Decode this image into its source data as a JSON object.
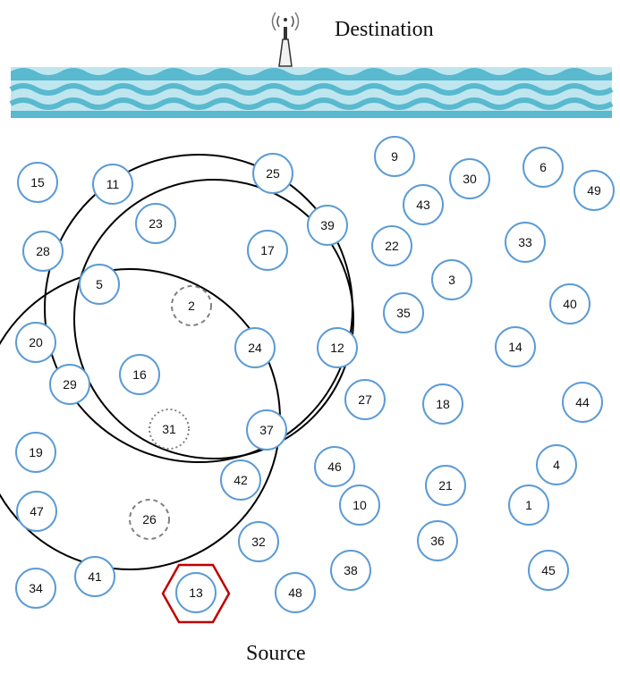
{
  "labels": {
    "destination": "Destination",
    "source": "Source"
  },
  "colors": {
    "node_stroke": "#5b9bd5",
    "range_circle": "#000000",
    "source_hexagon": "#c00000",
    "dashed_node": "#808080",
    "water": "#4fb3c8"
  },
  "icons": [
    "antenna-icon",
    "water-icon"
  ],
  "nodes": [
    "15",
    "11",
    "25",
    "9",
    "30",
    "6",
    "49",
    "43",
    "23",
    "39",
    "22",
    "33",
    "28",
    "17",
    "3",
    "5",
    "2",
    "40",
    "35",
    "20",
    "24",
    "12",
    "14",
    "29",
    "16",
    "27",
    "18",
    "44",
    "31",
    "37",
    "19",
    "46",
    "4",
    "42",
    "21",
    "47",
    "26",
    "10",
    "1",
    "32",
    "36",
    "38",
    "45",
    "41",
    "34",
    "48",
    "13"
  ],
  "dashed_nodes": [
    "2",
    "26"
  ],
  "dotted_nodes": [
    "31"
  ],
  "source_node": "13"
}
